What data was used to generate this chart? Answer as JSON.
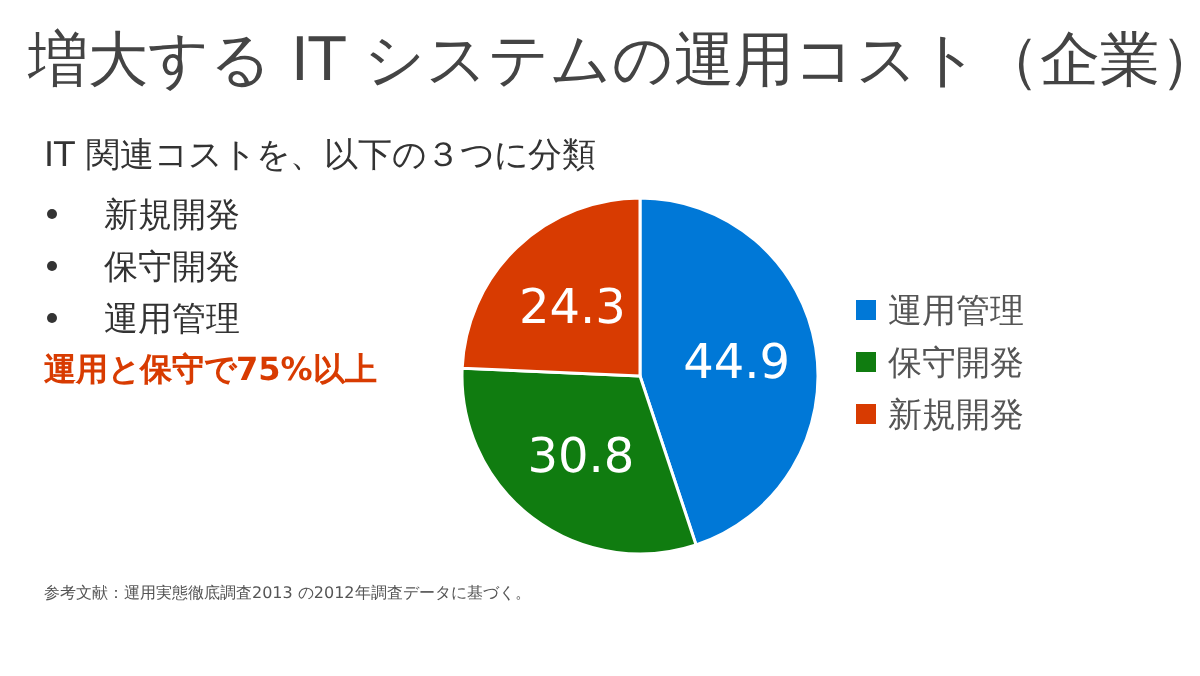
{
  "chart_data": {
    "type": "pie",
    "title": "増大する IT システムの運用コスト（企業）",
    "subtitle": "IT 関連コストを、以下の３つに分類",
    "categories": [
      "運用管理",
      "保守開発",
      "新規開発"
    ],
    "values": [
      44.9,
      30.8,
      24.3
    ],
    "colors": [
      "#0078d7",
      "#107c10",
      "#d83b01"
    ],
    "data_labels": true,
    "legend": "right",
    "annotations": [
      "新規開発",
      "保守開発",
      "運用管理",
      "運用と保守で75%以上",
      "参考文献：運用実態徹底調査2013 の2012年調査データに基づく。"
    ]
  }
}
